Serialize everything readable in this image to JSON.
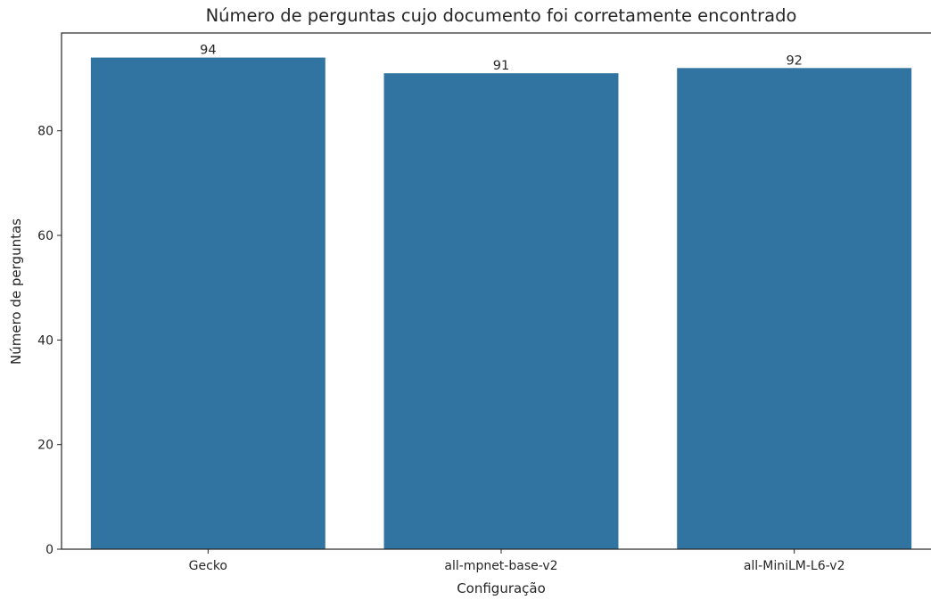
{
  "chart_data": {
    "type": "bar",
    "title": "Número de perguntas cujo documento foi corretamente encontrado",
    "xlabel": "Configuração",
    "ylabel": "Número de perguntas",
    "categories": [
      "Gecko",
      "all-mpnet-base-v2",
      "all-MiniLM-L6-v2"
    ],
    "values": [
      94,
      91,
      92
    ],
    "data_labels": [
      "94",
      "91",
      "92"
    ],
    "ylim": [
      0,
      98.7
    ],
    "yticks": [
      0,
      20,
      40,
      60,
      80
    ],
    "ytick_labels": [
      "0",
      "20",
      "40",
      "60",
      "80"
    ],
    "bar_color": "#3274a1",
    "grid": false,
    "legend": "none"
  }
}
